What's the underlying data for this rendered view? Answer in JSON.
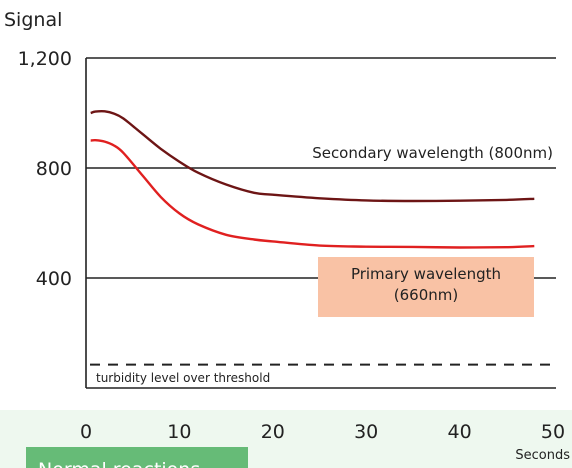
{
  "chart_data": {
    "type": "line",
    "ylabel": "Signal",
    "xlabel": "Seconds",
    "xlim": [
      0,
      50
    ],
    "ylim": [
      0,
      1200
    ],
    "xticks": [
      "0",
      "10",
      "20",
      "30",
      "40",
      "50"
    ],
    "yticks": [
      "400",
      "800",
      "1,200"
    ],
    "grid": "horizontal lines at y ticks",
    "series": [
      {
        "name": "Secondary wavelength (800nm)",
        "color": "#6d1515",
        "x": [
          0.5,
          1,
          2,
          3,
          4,
          6,
          8,
          10,
          12,
          15,
          18,
          20,
          25,
          30,
          35,
          40,
          45,
          48
        ],
        "values": [
          1000,
          1005,
          1006,
          998,
          980,
          925,
          870,
          823,
          783,
          740,
          710,
          703,
          690,
          682,
          680,
          681,
          684,
          688
        ]
      },
      {
        "name": "Primary wavelength (660nm)",
        "color": "#e02020",
        "x": [
          0.5,
          1,
          2,
          3,
          4,
          6,
          8,
          10,
          12,
          15,
          18,
          20,
          25,
          30,
          35,
          40,
          45,
          48
        ],
        "values": [
          900,
          901,
          896,
          882,
          855,
          775,
          695,
          635,
          595,
          557,
          540,
          533,
          518,
          514,
          513,
          511,
          512,
          516
        ]
      }
    ],
    "threshold": {
      "label": "turbidity level over threshold",
      "value": 85,
      "style": "dashed"
    },
    "annotations": {
      "secondary_label": "Secondary wavelength (800nm)",
      "primary_label_lines": [
        "Primary wavelength",
        "(660nm)"
      ],
      "primary_label_bg": "#f9c2a5"
    },
    "footer_badge": {
      "text": "Normal reactions",
      "color": "#66bb77"
    }
  }
}
